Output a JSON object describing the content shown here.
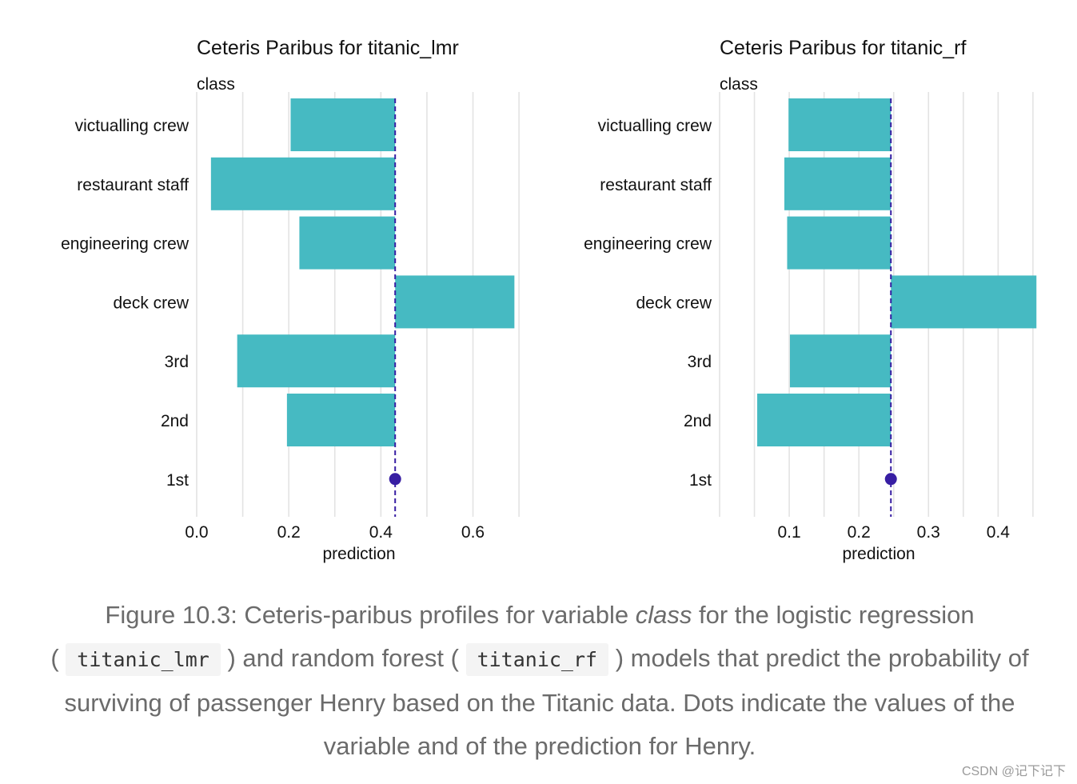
{
  "chart_data": [
    {
      "type": "bar",
      "title": "Ceteris Paribus for titanic_lmr",
      "variable_label": "class",
      "xlabel": "prediction",
      "xlim": [
        0.0,
        0.705
      ],
      "xticks": [
        0.0,
        0.2,
        0.4,
        0.6
      ],
      "xtick_labels": [
        "0.0",
        "0.2",
        "0.4",
        "0.6"
      ],
      "categories": [
        "victualling crew",
        "restaurant staff",
        "engineering crew",
        "deck crew",
        "3rd",
        "2nd",
        "1st"
      ],
      "values": [
        0.204,
        0.031,
        0.223,
        0.69,
        0.088,
        0.196,
        0.431
      ],
      "baseline": 0.431,
      "observed_category": "1st",
      "bar_color": "#46BAC2",
      "line_color": "#371EA3"
    },
    {
      "type": "bar",
      "title": "Ceteris Paribus for titanic_rf",
      "variable_label": "class",
      "xlabel": "prediction",
      "xlim": [
        0.0,
        0.457
      ],
      "xticks": [
        0.1,
        0.2,
        0.3,
        0.4
      ],
      "xtick_labels": [
        "0.1",
        "0.2",
        "0.3",
        "0.4"
      ],
      "categories": [
        "victualling crew",
        "restaurant staff",
        "engineering crew",
        "deck crew",
        "3rd",
        "2nd",
        "1st"
      ],
      "values": [
        0.099,
        0.093,
        0.097,
        0.455,
        0.101,
        0.054,
        0.246
      ],
      "baseline": 0.246,
      "observed_category": "1st",
      "bar_color": "#46BAC2",
      "line_color": "#371EA3"
    }
  ],
  "caption": {
    "prefix": "Figure 10.3: Ceteris-paribus profiles for variable ",
    "variable": "class",
    "part1": " for the logistic regression",
    "open1": "( ",
    "code1": "titanic_lmr",
    "part2": " ) and random forest ( ",
    "code2": "titanic_rf",
    "part3": " ) models that predict the probability of surviving of passenger Henry based on the Titanic data. Dots indicate the values of the variable and of the prediction for Henry."
  },
  "watermark": "CSDN @记下记下"
}
